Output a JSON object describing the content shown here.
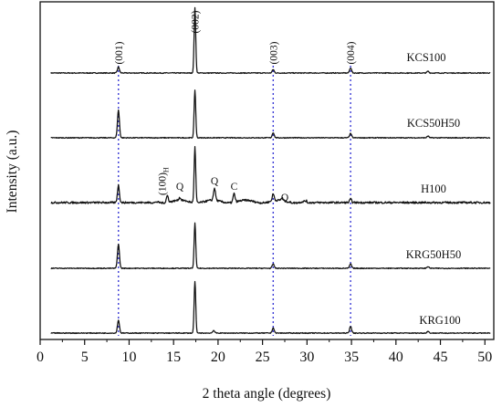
{
  "chart_data": {
    "type": "line",
    "title": "",
    "xlabel": "2 theta angle (degrees)",
    "ylabel": "Intensity (a.u.)",
    "xlim": [
      0,
      51
    ],
    "x_ticks": [
      0,
      5,
      10,
      15,
      20,
      25,
      30,
      35,
      40,
      45,
      50
    ],
    "y_ticks": [],
    "grid": false,
    "legend": "none",
    "reference_lines": [
      {
        "x": 8.8,
        "label": "(001)"
      },
      {
        "x": 26.2,
        "label": "(003)"
      },
      {
        "x": 34.9,
        "label": "(004)"
      }
    ],
    "peak_labels": [
      {
        "x": 8.8,
        "label": "(001)"
      },
      {
        "x": 17.4,
        "label": "(002)"
      },
      {
        "x": 26.2,
        "label": "(003)"
      },
      {
        "x": 34.9,
        "label": "(004)"
      }
    ],
    "annotations": [
      {
        "series": "H100",
        "x": 14.3,
        "label": "(100)",
        "subscript": "H"
      },
      {
        "series": "H100",
        "x": 15.7,
        "label": "Q"
      },
      {
        "series": "H100",
        "x": 19.6,
        "label": "Q"
      },
      {
        "series": "H100",
        "x": 21.8,
        "label": "C"
      },
      {
        "series": "H100",
        "x": 27.2,
        "label": "Q"
      }
    ],
    "series": [
      {
        "name": "KCS100",
        "peaks": [
          [
            8.8,
            7
          ],
          [
            17.4,
            75
          ],
          [
            26.2,
            4
          ],
          [
            34.9,
            6
          ],
          [
            43.6,
            2
          ]
        ]
      },
      {
        "name": "KCS50H50",
        "peaks": [
          [
            8.8,
            32
          ],
          [
            17.4,
            55
          ],
          [
            26.2,
            6
          ],
          [
            34.9,
            5
          ],
          [
            43.6,
            2
          ]
        ]
      },
      {
        "name": "H100",
        "peaks": [
          [
            8.8,
            20
          ],
          [
            14.3,
            8
          ],
          [
            15.7,
            3
          ],
          [
            17.4,
            64
          ],
          [
            19.6,
            14
          ],
          [
            21.8,
            10
          ],
          [
            26.2,
            8
          ],
          [
            27.2,
            3
          ],
          [
            34.9,
            4
          ]
        ]
      },
      {
        "name": "KRG50H50",
        "peaks": [
          [
            8.8,
            28
          ],
          [
            17.4,
            52
          ],
          [
            26.2,
            5
          ],
          [
            34.9,
            5
          ],
          [
            43.6,
            2
          ]
        ]
      },
      {
        "name": "KRG100",
        "peaks": [
          [
            8.8,
            15
          ],
          [
            17.4,
            60
          ],
          [
            19.5,
            3
          ],
          [
            26.2,
            6
          ],
          [
            34.9,
            8
          ],
          [
            43.6,
            2
          ]
        ]
      }
    ]
  }
}
